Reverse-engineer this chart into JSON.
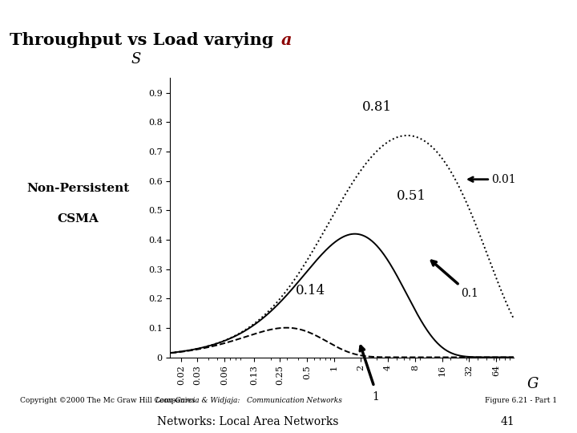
{
  "title_bg_color": "#3cb371",
  "xlabel": "G",
  "ylabel": "S",
  "x_ticks": [
    0.02,
    0.03,
    0.06,
    0.13,
    0.25,
    0.5,
    1,
    2,
    4,
    8,
    16,
    32,
    64
  ],
  "ylim": [
    0,
    0.95
  ],
  "left_label_line1": "Non-Persistent",
  "left_label_line2": "CSMA",
  "copyright": "Copyright ©2000 The Mc Graw Hill Companies",
  "reference": "Leon-Garcia & Widjaja:   Communication Networks",
  "figure_label": "Figure 6.21 - Part 1",
  "bottom_label": "Networks: Local Area Networks",
  "page_num": "41",
  "background_color": "#ffffff",
  "a_values": [
    0.01,
    0.1,
    1.0
  ],
  "linestyles": [
    "dotted",
    "solid",
    "dashed"
  ],
  "peak_labels": [
    "0.81",
    "0.51",
    "0.14"
  ],
  "a_labels": [
    "0.01",
    "0.1",
    "1"
  ]
}
